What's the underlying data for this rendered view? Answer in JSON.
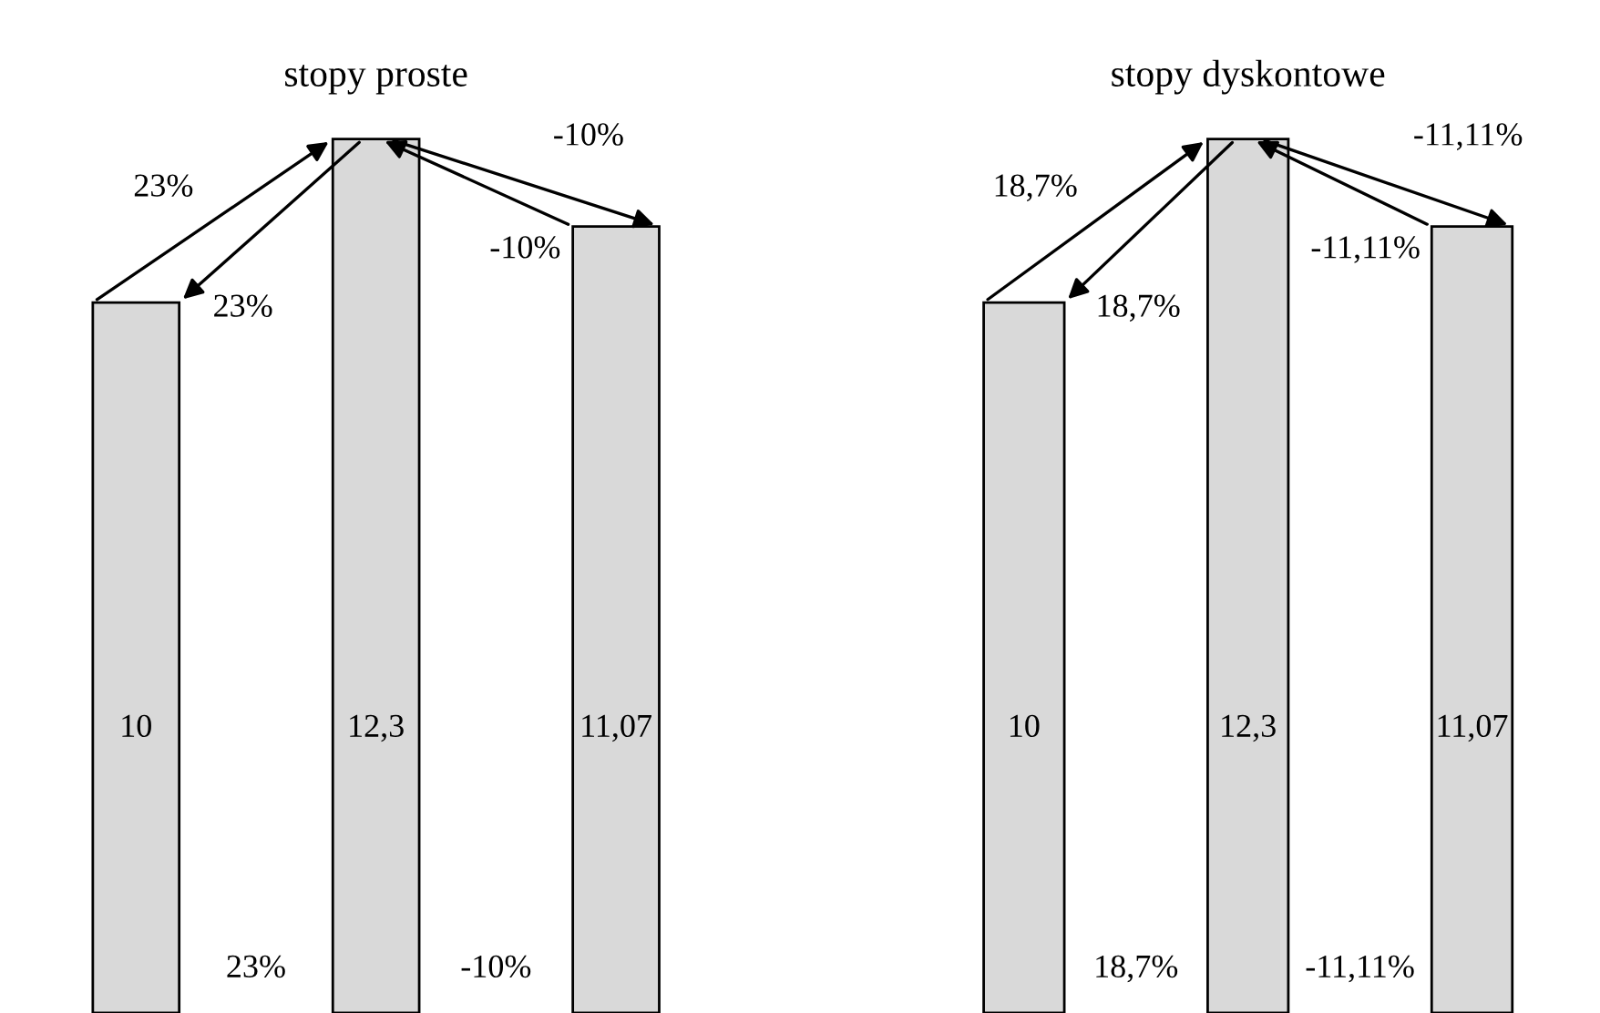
{
  "chart_data": [
    {
      "type": "bar",
      "title": "stopy proste",
      "categories": [
        null,
        null,
        null
      ],
      "values": [
        10,
        12.3,
        11.07
      ],
      "color": "#d9d9d9",
      "value_labels": [
        "10",
        "12,3",
        "11,07"
      ],
      "annotations": [
        "23%",
        "23%",
        "-10%",
        "-10%",
        "23%",
        "-10%"
      ]
    },
    {
      "type": "bar",
      "title": "stopy dyskontowe",
      "categories": [
        null,
        null,
        null
      ],
      "values": [
        10,
        12.3,
        11.07
      ],
      "color": "#d9d9d9",
      "value_labels": [
        "10",
        "12,3",
        "11,07"
      ],
      "annotations": [
        "18,7%",
        "18,7%",
        "-11,11%",
        "-11,11%",
        "18,7%",
        "-11,11%"
      ]
    }
  ]
}
